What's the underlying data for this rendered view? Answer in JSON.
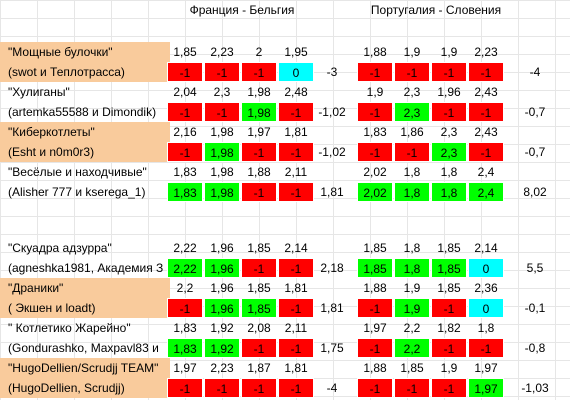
{
  "headers": {
    "match1": "Франция - Бельгия",
    "match2": "Португалия - Словения"
  },
  "result_colors": {
    "red": "#ff0000",
    "green": "#00ff00",
    "cyan": "#00ffff",
    "orange": "#f9cb9c"
  },
  "teams": [
    {
      "name": "\"Мощные булочки\"",
      "members": "(swot и Теплотрасса)",
      "orange": true,
      "m1_odds": [
        "1,85",
        "2,23",
        "2",
        "1,95"
      ],
      "m1_res": [
        [
          "-1",
          "red"
        ],
        [
          "-1",
          "red"
        ],
        [
          "-1",
          "red"
        ],
        [
          "0",
          "cyan"
        ]
      ],
      "m1_total": "-3",
      "m2_odds": [
        "1,88",
        "1,9",
        "1,9",
        "2,23"
      ],
      "m2_res": [
        [
          "-1",
          "red"
        ],
        [
          "-1",
          "red"
        ],
        [
          "-1",
          "red"
        ],
        [
          "-1",
          "red"
        ]
      ],
      "m2_total": "-4"
    },
    {
      "name": "\"Хулиганы\"",
      "members": "(artemka55588 и Dimondik)",
      "orange": false,
      "m1_odds": [
        "2,04",
        "2,3",
        "1,98",
        "2,48"
      ],
      "m1_res": [
        [
          "-1",
          "red"
        ],
        [
          "-1",
          "red"
        ],
        [
          "1,98",
          "green"
        ],
        [
          "-1",
          "red"
        ]
      ],
      "m1_total": "-1,02",
      "m2_odds": [
        "1,9",
        "2,3",
        "1,96",
        "2,43"
      ],
      "m2_res": [
        [
          "-1",
          "red"
        ],
        [
          "2,3",
          "green"
        ],
        [
          "-1",
          "red"
        ],
        [
          "-1",
          "red"
        ]
      ],
      "m2_total": "-0,7"
    },
    {
      "name": "\"Киберкотлеты\"",
      "members": "(Esht и n0m0r3)",
      "orange": true,
      "m1_odds": [
        "2,16",
        "1,98",
        "1,97",
        "1,81"
      ],
      "m1_res": [
        [
          "-1",
          "red"
        ],
        [
          "1,98",
          "green"
        ],
        [
          "-1",
          "red"
        ],
        [
          "-1",
          "red"
        ]
      ],
      "m1_total": "-1,02",
      "m2_odds": [
        "1,83",
        "1,86",
        "2,3",
        "2,43"
      ],
      "m2_res": [
        [
          "-1",
          "red"
        ],
        [
          "-1",
          "red"
        ],
        [
          "2,3",
          "green"
        ],
        [
          "-1",
          "red"
        ]
      ],
      "m2_total": "-0,7"
    },
    {
      "name": "\"Весёлые и находчивые\"",
      "members": "(Alisher 777 и kserega_1)",
      "orange": false,
      "m1_odds": [
        "1,83",
        "1,98",
        "1,88",
        "2,11"
      ],
      "m1_res": [
        [
          "1,83",
          "green"
        ],
        [
          "1,98",
          "green"
        ],
        [
          "-1",
          "red"
        ],
        [
          "-1",
          "red"
        ]
      ],
      "m1_total": "1,81",
      "m2_odds": [
        "2,02",
        "1,8",
        "1,8",
        "2,4"
      ],
      "m2_res": [
        [
          "2,02",
          "green"
        ],
        [
          "1,8",
          "green"
        ],
        [
          "1,8",
          "green"
        ],
        [
          "2,4",
          "green"
        ]
      ],
      "m2_total": "8,02"
    },
    {
      "name": "\"Скуадра адзурра\"",
      "members": "(agneshka1981, Академия З",
      "orange": false,
      "m1_odds": [
        "2,22",
        "1,96",
        "1,85",
        "2,14"
      ],
      "m1_res": [
        [
          "2,22",
          "green"
        ],
        [
          "1,96",
          "green"
        ],
        [
          "-1",
          "red"
        ],
        [
          "-1",
          "red"
        ]
      ],
      "m1_total": "2,18",
      "m2_odds": [
        "1,85",
        "1,8",
        "1,85",
        "2,14"
      ],
      "m2_res": [
        [
          "1,85",
          "green"
        ],
        [
          "1,8",
          "green"
        ],
        [
          "1,85",
          "green"
        ],
        [
          "0",
          "cyan"
        ]
      ],
      "m2_total": "5,5"
    },
    {
      "name": "\"Драники\"",
      "members": "( Экшен и loadt)",
      "orange": true,
      "m1_odds": [
        "2,2",
        "1,96",
        "1,85",
        "1,81"
      ],
      "m1_res": [
        [
          "-1",
          "red"
        ],
        [
          "1,96",
          "green"
        ],
        [
          "1,85",
          "green"
        ],
        [
          "-1",
          "red"
        ]
      ],
      "m1_total": "1,81",
      "m2_odds": [
        "1,88",
        "1,9",
        "1,85",
        "2,36"
      ],
      "m2_res": [
        [
          "-1",
          "red"
        ],
        [
          "1,9",
          "green"
        ],
        [
          "-1",
          "red"
        ],
        [
          "0",
          "cyan"
        ]
      ],
      "m2_total": "-0,1"
    },
    {
      "name": "\" Котлетико Жарейно\"",
      "members": "(Gondurashko, Maxpavl83 и",
      "orange": false,
      "m1_odds": [
        "1,83",
        "1,92",
        "2,08",
        "2,11"
      ],
      "m1_res": [
        [
          "1,83",
          "green"
        ],
        [
          "1,92",
          "green"
        ],
        [
          "-1",
          "red"
        ],
        [
          "-1",
          "red"
        ]
      ],
      "m1_total": "1,75",
      "m2_odds": [
        "1,97",
        "2,2",
        "1,82",
        "1,8"
      ],
      "m2_res": [
        [
          "-1",
          "red"
        ],
        [
          "2,2",
          "green"
        ],
        [
          "-1",
          "red"
        ],
        [
          "-1",
          "red"
        ]
      ],
      "m2_total": "-0,8"
    },
    {
      "name": "\"HugoDellien/Scrudjj TEAM\"",
      "members": "(HugoDellien, Scrudjj)",
      "orange": true,
      "m1_odds": [
        "1,97",
        "2,23",
        "1,87",
        "1,81"
      ],
      "m1_res": [
        [
          "-1",
          "red"
        ],
        [
          "-1",
          "red"
        ],
        [
          "-1",
          "red"
        ],
        [
          "-1",
          "red"
        ]
      ],
      "m1_total": "-4",
      "m2_odds": [
        "1,88",
        "1,85",
        "1,9",
        "1,97"
      ],
      "m2_res": [
        [
          "-1",
          "red"
        ],
        [
          "-1",
          "red"
        ],
        [
          "-1",
          "red"
        ],
        [
          "1,97",
          "green"
        ]
      ],
      "m2_total": "-1,03"
    }
  ]
}
